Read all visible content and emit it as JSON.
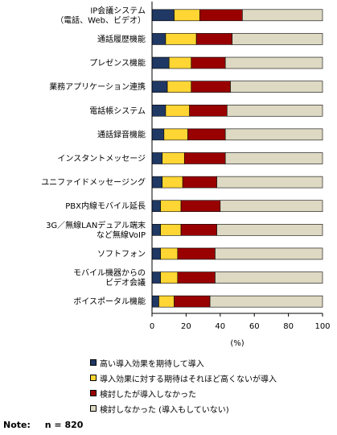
{
  "chart_data": {
    "type": "bar",
    "orientation": "horizontal",
    "stacked": true,
    "categories": [
      "IP会議システム\n（電話、Web、ビデオ）",
      "通話履歴機能",
      "プレゼンス機能",
      "業務アプリケーション連携",
      "電話帳システム",
      "通話録音機能",
      "インスタントメッセージ",
      "ユニファイドメッセージング",
      "PBX内線モバイル延長",
      "3G／無線LANデュアル端末\nなど無線VoIP",
      "ソフトフォン",
      "モバイル機器からの\nビデオ会議",
      "ボイスポータル機能"
    ],
    "series": [
      {
        "name": "高い導入効果を期待して導入",
        "color": "#1f3864",
        "values": [
          13,
          8,
          10,
          9,
          8,
          7,
          6,
          6,
          5,
          5,
          5,
          5,
          4
        ]
      },
      {
        "name": "導入効果に対する期待はそれほど高くないが導入",
        "color": "#ffd633",
        "values": [
          15,
          18,
          13,
          14,
          14,
          14,
          13,
          12,
          12,
          12,
          10,
          10,
          9
        ]
      },
      {
        "name": "検討したが導入しなかった",
        "color": "#990000",
        "values": [
          25,
          21,
          20,
          23,
          22,
          22,
          24,
          20,
          23,
          21,
          22,
          22,
          21
        ]
      },
      {
        "name": "検討しなかった（導入もしていない）",
        "color": "#ddd9c3",
        "values": [
          47,
          53,
          57,
          54,
          56,
          57,
          57,
          62,
          60,
          62,
          63,
          63,
          66
        ]
      }
    ],
    "xlim": [
      0,
      100
    ],
    "xticks": [
      "0",
      "20",
      "40",
      "60",
      "80",
      "100"
    ],
    "xlabel": "(%)",
    "grid": false,
    "legend_position": "bottom"
  },
  "legend": {
    "items": [
      "高い導入効果を期待して導入",
      "導入効果に対する期待はそれほど高くないが導入",
      "検討したが導入しなかった",
      "検討しなかった (導入もしていない)"
    ]
  },
  "note": {
    "label": "Note:",
    "text": "n = 820"
  }
}
